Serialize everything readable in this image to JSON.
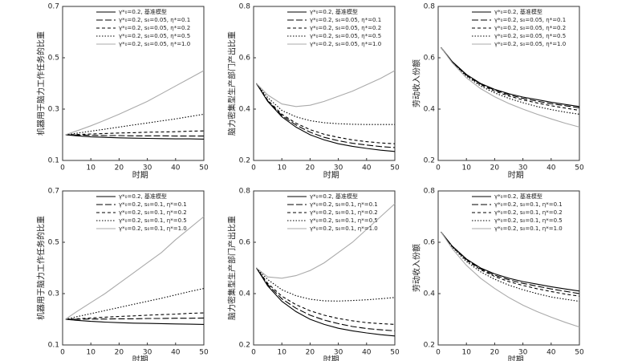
{
  "chart_data": [
    {
      "type": "line",
      "y_label": "机器用于脑力工作任务的比重",
      "x_label": "时期",
      "x": [
        1,
        5,
        10,
        15,
        20,
        25,
        30,
        35,
        40,
        45,
        50
      ],
      "xlim": [
        0,
        50
      ],
      "xticks": [
        0,
        10,
        20,
        30,
        40,
        50
      ],
      "ylim": [
        0.1,
        0.7
      ],
      "yticks": [
        0.1,
        0.3,
        0.5,
        0.7
      ],
      "series": [
        {
          "name": "γ*₀=0.2, 基准模型",
          "color": "#000000",
          "dash": "solid",
          "values": [
            0.2,
            0.196,
            0.192,
            0.19,
            0.188,
            0.187,
            0.186,
            0.185,
            0.184,
            0.184,
            0.183
          ]
        },
        {
          "name": "γ*₀=0.2, s₀=0.05, η*=0.1",
          "color": "#000000",
          "dash": "longdash",
          "values": [
            0.2,
            0.199,
            0.198,
            0.197,
            0.197,
            0.196,
            0.196,
            0.196,
            0.195,
            0.195,
            0.195
          ]
        },
        {
          "name": "γ*₀=0.2, s₀=0.05, η*=0.2",
          "color": "#000000",
          "dash": "dash",
          "values": [
            0.2,
            0.201,
            0.203,
            0.205,
            0.207,
            0.208,
            0.21,
            0.211,
            0.212,
            0.214,
            0.215
          ]
        },
        {
          "name": "γ*₀=0.2, s₀=0.05, η*=0.5",
          "color": "#000000",
          "dash": "dot",
          "values": [
            0.2,
            0.206,
            0.214,
            0.222,
            0.23,
            0.238,
            0.246,
            0.254,
            0.262,
            0.271,
            0.28
          ]
        },
        {
          "name": "γ*₀=0.2, s₀=0.05, η*=1.0",
          "color": "#aaaaaa",
          "dash": "solid",
          "values": [
            0.2,
            0.215,
            0.235,
            0.257,
            0.28,
            0.305,
            0.33,
            0.36,
            0.39,
            0.42,
            0.45
          ]
        }
      ]
    },
    {
      "type": "line",
      "y_label": "脑力密集型生产部门产出比重",
      "x_label": "时期",
      "x": [
        1,
        5,
        10,
        15,
        20,
        25,
        30,
        35,
        40,
        45,
        50
      ],
      "xlim": [
        0,
        50
      ],
      "xticks": [
        0,
        10,
        20,
        30,
        40,
        50
      ],
      "ylim": [
        0.2,
        0.8
      ],
      "yticks": [
        0.2,
        0.4,
        0.6,
        0.8
      ],
      "series": [
        {
          "name": "γ*₀=0.2, 基准模型",
          "color": "#000000",
          "dash": "solid",
          "values": [
            0.5,
            0.43,
            0.37,
            0.33,
            0.3,
            0.28,
            0.265,
            0.255,
            0.247,
            0.24,
            0.235
          ]
        },
        {
          "name": "γ*₀=0.2, s₀=0.05, η*=0.1",
          "color": "#000000",
          "dash": "longdash",
          "values": [
            0.5,
            0.432,
            0.375,
            0.338,
            0.31,
            0.29,
            0.277,
            0.267,
            0.26,
            0.254,
            0.25
          ]
        },
        {
          "name": "γ*₀=0.2, s₀=0.05, η*=0.2",
          "color": "#000000",
          "dash": "dash",
          "values": [
            0.5,
            0.435,
            0.38,
            0.345,
            0.32,
            0.302,
            0.29,
            0.28,
            0.273,
            0.268,
            0.265
          ]
        },
        {
          "name": "γ*₀=0.2, s₀=0.05, η*=0.5",
          "color": "#000000",
          "dash": "dot",
          "values": [
            0.5,
            0.445,
            0.395,
            0.37,
            0.355,
            0.347,
            0.343,
            0.341,
            0.34,
            0.34,
            0.34
          ]
        },
        {
          "name": "γ*₀=0.2, s₀=0.05, η*=1.0",
          "color": "#aaaaaa",
          "dash": "solid",
          "values": [
            0.5,
            0.455,
            0.42,
            0.41,
            0.415,
            0.43,
            0.45,
            0.47,
            0.495,
            0.52,
            0.55
          ]
        }
      ]
    },
    {
      "type": "line",
      "y_label": "劳动收入份额",
      "x_label": "时期",
      "x": [
        1,
        5,
        10,
        15,
        20,
        25,
        30,
        35,
        40,
        45,
        50
      ],
      "xlim": [
        0,
        50
      ],
      "xticks": [
        0,
        10,
        20,
        30,
        40,
        50
      ],
      "ylim": [
        0.2,
        0.8
      ],
      "yticks": [
        0.2,
        0.4,
        0.6,
        0.8
      ],
      "series": [
        {
          "name": "γ*₀=0.2, 基准模型",
          "color": "#000000",
          "dash": "solid",
          "values": [
            0.64,
            0.585,
            0.535,
            0.5,
            0.477,
            0.46,
            0.447,
            0.437,
            0.427,
            0.418,
            0.41
          ]
        },
        {
          "name": "γ*₀=0.2, s₀=0.05, η*=0.1",
          "color": "#000000",
          "dash": "longdash",
          "values": [
            0.64,
            0.584,
            0.533,
            0.498,
            0.474,
            0.456,
            0.442,
            0.431,
            0.421,
            0.413,
            0.405
          ]
        },
        {
          "name": "γ*₀=0.2, s₀=0.05, η*=0.2",
          "color": "#000000",
          "dash": "dash",
          "values": [
            0.64,
            0.583,
            0.531,
            0.495,
            0.47,
            0.451,
            0.436,
            0.424,
            0.413,
            0.404,
            0.395
          ]
        },
        {
          "name": "γ*₀=0.2, s₀=0.05, η*=0.5",
          "color": "#000000",
          "dash": "dot",
          "values": [
            0.64,
            0.582,
            0.528,
            0.49,
            0.463,
            0.442,
            0.425,
            0.41,
            0.398,
            0.388,
            0.38
          ]
        },
        {
          "name": "γ*₀=0.2, s₀=0.05, η*=1.0",
          "color": "#aaaaaa",
          "dash": "solid",
          "values": [
            0.64,
            0.58,
            0.522,
            0.48,
            0.448,
            0.422,
            0.4,
            0.38,
            0.362,
            0.345,
            0.33
          ]
        }
      ]
    },
    {
      "type": "line",
      "y_label": "机器用于脑力工作任务的比重",
      "x_label": "时期",
      "x": [
        1,
        5,
        10,
        15,
        20,
        25,
        30,
        35,
        40,
        45,
        50
      ],
      "xlim": [
        0,
        50
      ],
      "xticks": [
        0,
        10,
        20,
        30,
        40,
        50
      ],
      "ylim": [
        0.1,
        0.7
      ],
      "yticks": [
        0.1,
        0.3,
        0.5,
        0.7
      ],
      "series": [
        {
          "name": "γ*₀=0.2, 基准模型",
          "color": "#000000",
          "dash": "solid",
          "values": [
            0.2,
            0.196,
            0.192,
            0.189,
            0.187,
            0.185,
            0.184,
            0.183,
            0.182,
            0.181,
            0.18
          ]
        },
        {
          "name": "γ*₀=0.2, s₀=0.1, η*=0.1",
          "color": "#000000",
          "dash": "longdash",
          "values": [
            0.2,
            0.2,
            0.201,
            0.201,
            0.202,
            0.202,
            0.203,
            0.203,
            0.204,
            0.204,
            0.205
          ]
        },
        {
          "name": "γ*₀=0.2, s₀=0.1, η*=0.2",
          "color": "#000000",
          "dash": "dash",
          "values": [
            0.2,
            0.202,
            0.205,
            0.208,
            0.211,
            0.213,
            0.216,
            0.218,
            0.22,
            0.223,
            0.225
          ]
        },
        {
          "name": "γ*₀=0.2, s₀=0.1, η*=0.5",
          "color": "#000000",
          "dash": "dot",
          "values": [
            0.2,
            0.21,
            0.222,
            0.234,
            0.246,
            0.258,
            0.27,
            0.282,
            0.295,
            0.308,
            0.32
          ]
        },
        {
          "name": "γ*₀=0.2, s₀=0.1, η*=1.0",
          "color": "#aaaaaa",
          "dash": "solid",
          "values": [
            0.2,
            0.23,
            0.265,
            0.3,
            0.34,
            0.38,
            0.42,
            0.46,
            0.51,
            0.555,
            0.6
          ]
        }
      ]
    },
    {
      "type": "line",
      "y_label": "脑力密集型生产部门产出比重",
      "x_label": "时期",
      "x": [
        1,
        5,
        10,
        15,
        20,
        25,
        30,
        35,
        40,
        45,
        50
      ],
      "xlim": [
        0,
        50
      ],
      "xticks": [
        0,
        10,
        20,
        30,
        40,
        50
      ],
      "ylim": [
        0.2,
        0.8
      ],
      "yticks": [
        0.2,
        0.4,
        0.6,
        0.8
      ],
      "series": [
        {
          "name": "γ*₀=0.2, 基准模型",
          "color": "#000000",
          "dash": "solid",
          "values": [
            0.5,
            0.43,
            0.37,
            0.33,
            0.3,
            0.28,
            0.265,
            0.255,
            0.247,
            0.24,
            0.235
          ]
        },
        {
          "name": "γ*₀=0.2, s₀=0.1, η*=0.1",
          "color": "#000000",
          "dash": "longdash",
          "values": [
            0.5,
            0.435,
            0.38,
            0.343,
            0.316,
            0.297,
            0.283,
            0.272,
            0.264,
            0.259,
            0.255
          ]
        },
        {
          "name": "γ*₀=0.2, s₀=0.1, η*=0.2",
          "color": "#000000",
          "dash": "dash",
          "values": [
            0.5,
            0.44,
            0.39,
            0.357,
            0.333,
            0.316,
            0.303,
            0.294,
            0.287,
            0.283,
            0.28
          ]
        },
        {
          "name": "γ*₀=0.2, s₀=0.1, η*=0.5",
          "color": "#000000",
          "dash": "dot",
          "values": [
            0.5,
            0.455,
            0.415,
            0.392,
            0.378,
            0.372,
            0.371,
            0.373,
            0.376,
            0.38,
            0.385
          ]
        },
        {
          "name": "γ*₀=0.2, s₀=0.1, η*=1.0",
          "color": "#aaaaaa",
          "dash": "solid",
          "values": [
            0.5,
            0.465,
            0.46,
            0.47,
            0.49,
            0.52,
            0.56,
            0.6,
            0.65,
            0.7,
            0.75
          ]
        }
      ]
    },
    {
      "type": "line",
      "y_label": "劳动收入份额",
      "x_label": "时期",
      "x": [
        1,
        5,
        10,
        15,
        20,
        25,
        30,
        35,
        40,
        45,
        50
      ],
      "xlim": [
        0,
        50
      ],
      "xticks": [
        0,
        10,
        20,
        30,
        40,
        50
      ],
      "ylim": [
        0.2,
        0.8
      ],
      "yticks": [
        0.2,
        0.4,
        0.6,
        0.8
      ],
      "series": [
        {
          "name": "γ*₀=0.2, 基准模型",
          "color": "#000000",
          "dash": "solid",
          "values": [
            0.64,
            0.585,
            0.535,
            0.5,
            0.477,
            0.46,
            0.447,
            0.437,
            0.427,
            0.418,
            0.41
          ]
        },
        {
          "name": "γ*₀=0.2, s₀=0.1, η*=0.1",
          "color": "#000000",
          "dash": "longdash",
          "values": [
            0.64,
            0.584,
            0.533,
            0.497,
            0.472,
            0.454,
            0.44,
            0.429,
            0.418,
            0.409,
            0.4
          ]
        },
        {
          "name": "γ*₀=0.2, s₀=0.1, η*=0.2",
          "color": "#000000",
          "dash": "dash",
          "values": [
            0.64,
            0.583,
            0.53,
            0.493,
            0.467,
            0.447,
            0.432,
            0.419,
            0.408,
            0.398,
            0.39
          ]
        },
        {
          "name": "γ*₀=0.2, s₀=0.1, η*=0.5",
          "color": "#000000",
          "dash": "dot",
          "values": [
            0.64,
            0.581,
            0.525,
            0.485,
            0.456,
            0.433,
            0.415,
            0.4,
            0.387,
            0.378,
            0.37
          ]
        },
        {
          "name": "γ*₀=0.2, s₀=0.1, η*=1.0",
          "color": "#aaaaaa",
          "dash": "solid",
          "values": [
            0.64,
            0.575,
            0.51,
            0.46,
            0.42,
            0.385,
            0.355,
            0.33,
            0.308,
            0.288,
            0.27
          ]
        }
      ]
    }
  ]
}
